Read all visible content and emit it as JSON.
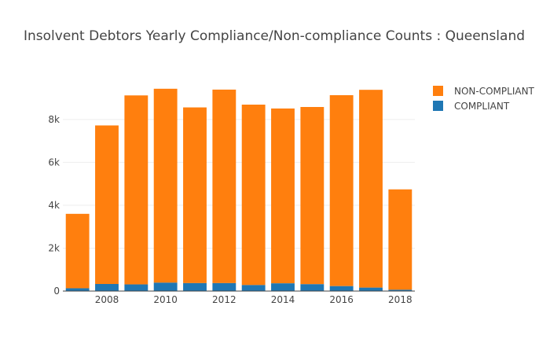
{
  "chart_data": {
    "type": "bar",
    "stacked": true,
    "title": "Insolvent Debtors Yearly Compliance/Non-compliance Counts : Queensland",
    "xlabel": "",
    "ylabel": "",
    "x": [
      2007,
      2008,
      2009,
      2010,
      2011,
      2012,
      2013,
      2014,
      2015,
      2016,
      2017,
      2018
    ],
    "x_ticks": [
      "2008",
      "2010",
      "2012",
      "2014",
      "2016",
      "2018"
    ],
    "y_ticks": [
      "0",
      "2k",
      "4k",
      "6k",
      "8k"
    ],
    "ylim": [
      0,
      9900
    ],
    "grid": true,
    "legend_position": "top-right",
    "series": [
      {
        "name": "COMPLIANT",
        "color": "#1f77b4",
        "values": [
          130,
          330,
          310,
          390,
          370,
          370,
          280,
          360,
          320,
          230,
          160,
          60
        ]
      },
      {
        "name": "NON-COMPLIANT",
        "color": "#ff7f0e",
        "values": [
          3470,
          7390,
          8810,
          9040,
          8190,
          9020,
          8410,
          8150,
          8260,
          8900,
          9220,
          4680
        ]
      }
    ]
  }
}
